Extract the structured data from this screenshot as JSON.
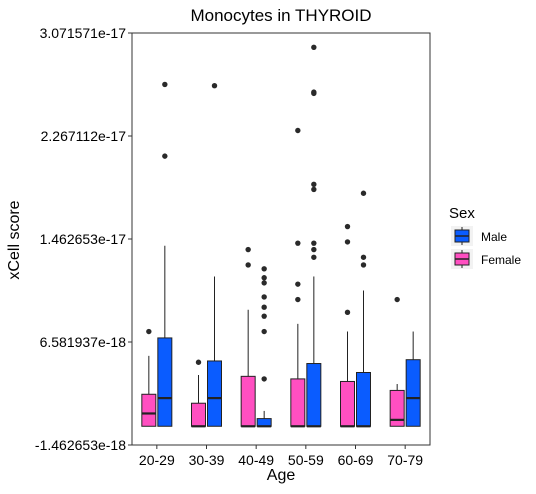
{
  "chart_data": {
    "type": "boxplot",
    "title": "Monocytes in THYROID",
    "xlabel": "Age",
    "ylabel": "xCell score",
    "ylim": [
      -1.462653e-18,
      3.071571e-17
    ],
    "yticks": [
      -1.462653e-18,
      6.581937e-18,
      1.462653e-17,
      2.267112e-17,
      3.071571e-17
    ],
    "ytick_labels": [
      "-1.462653e-18",
      "6.581937e-18",
      "1.462653e-17",
      "2.267112e-17",
      "3.071571e-17"
    ],
    "categories": [
      "20-29",
      "30-39",
      "40-49",
      "50-59",
      "60-69",
      "70-79"
    ],
    "grid": false,
    "legend": {
      "title": "Sex",
      "position": "right",
      "entries": [
        {
          "name": "Male",
          "color": "#0a5cff"
        },
        {
          "name": "Female",
          "color": "#ff4fc1"
        }
      ]
    },
    "series": [
      {
        "name": "Female",
        "color": "#ff4fc1",
        "boxes": [
          {
            "category": "20-29",
            "min": 0,
            "q1": 0,
            "median": 1e-18,
            "q3": 2.5e-18,
            "max": 5.5e-18,
            "outliers": [
              7.4e-18
            ]
          },
          {
            "category": "30-39",
            "min": 0,
            "q1": 0,
            "median": 0,
            "q3": 1.8e-18,
            "max": 4e-18,
            "outliers": [
              5e-18
            ]
          },
          {
            "category": "40-49",
            "min": 0,
            "q1": 0,
            "median": 0,
            "q3": 3.9e-18,
            "max": 9.1e-18,
            "outliers": [
              1.26e-17,
              1.38e-17
            ]
          },
          {
            "category": "50-59",
            "min": 0,
            "q1": 0,
            "median": 0,
            "q3": 3.7e-18,
            "max": 8e-18,
            "outliers": [
              9.9e-18,
              1.11e-17,
              1.43e-17,
              2.31e-17
            ]
          },
          {
            "category": "60-69",
            "min": 0,
            "q1": 0,
            "median": 0,
            "q3": 3.5e-18,
            "max": 7.4e-18,
            "outliers": [
              8.9e-18,
              1.44e-17,
              1.56e-17
            ]
          },
          {
            "category": "70-79",
            "min": 0,
            "q1": 0,
            "median": 5e-19,
            "q3": 2.8e-18,
            "max": 3.3e-18,
            "outliers": [
              9.9e-18
            ]
          }
        ]
      },
      {
        "name": "Male",
        "color": "#0a5cff",
        "boxes": [
          {
            "category": "20-29",
            "min": 0,
            "q1": 0,
            "median": 2.2e-18,
            "q3": 6.9e-18,
            "max": 1.41e-17,
            "outliers": [
              2.11e-17,
              2.67e-17
            ]
          },
          {
            "category": "30-39",
            "min": 0,
            "q1": 0,
            "median": 2.2e-18,
            "q3": 5.1e-18,
            "max": 1.17e-17,
            "outliers": [
              2.66e-17
            ]
          },
          {
            "category": "40-49",
            "min": 0,
            "q1": 0,
            "median": 0,
            "q3": 6e-19,
            "max": 1.2e-18,
            "outliers": [
              3.7e-18,
              7.4e-18,
              8.6e-18,
              9.3e-18,
              1.01e-17,
              1.12e-17,
              1.16e-17,
              1.23e-17
            ]
          },
          {
            "category": "50-59",
            "min": 0,
            "q1": 0,
            "median": 0,
            "q3": 4.9e-18,
            "max": 1.17e-17,
            "outliers": [
              1.32e-17,
              1.38e-17,
              1.43e-17,
              1.85e-17,
              1.89e-17,
              2.6e-17,
              2.61e-17,
              2.96e-17
            ]
          },
          {
            "category": "60-69",
            "min": 0,
            "q1": 0,
            "median": 0,
            "q3": 4.2e-18,
            "max": 1.06e-17,
            "outliers": [
              1.26e-17,
              1.32e-17,
              1.82e-17
            ]
          },
          {
            "category": "70-79",
            "min": 0,
            "q1": 0,
            "median": 2.2e-18,
            "q3": 5.2e-18,
            "max": 7.4e-18,
            "outliers": []
          }
        ]
      }
    ]
  }
}
